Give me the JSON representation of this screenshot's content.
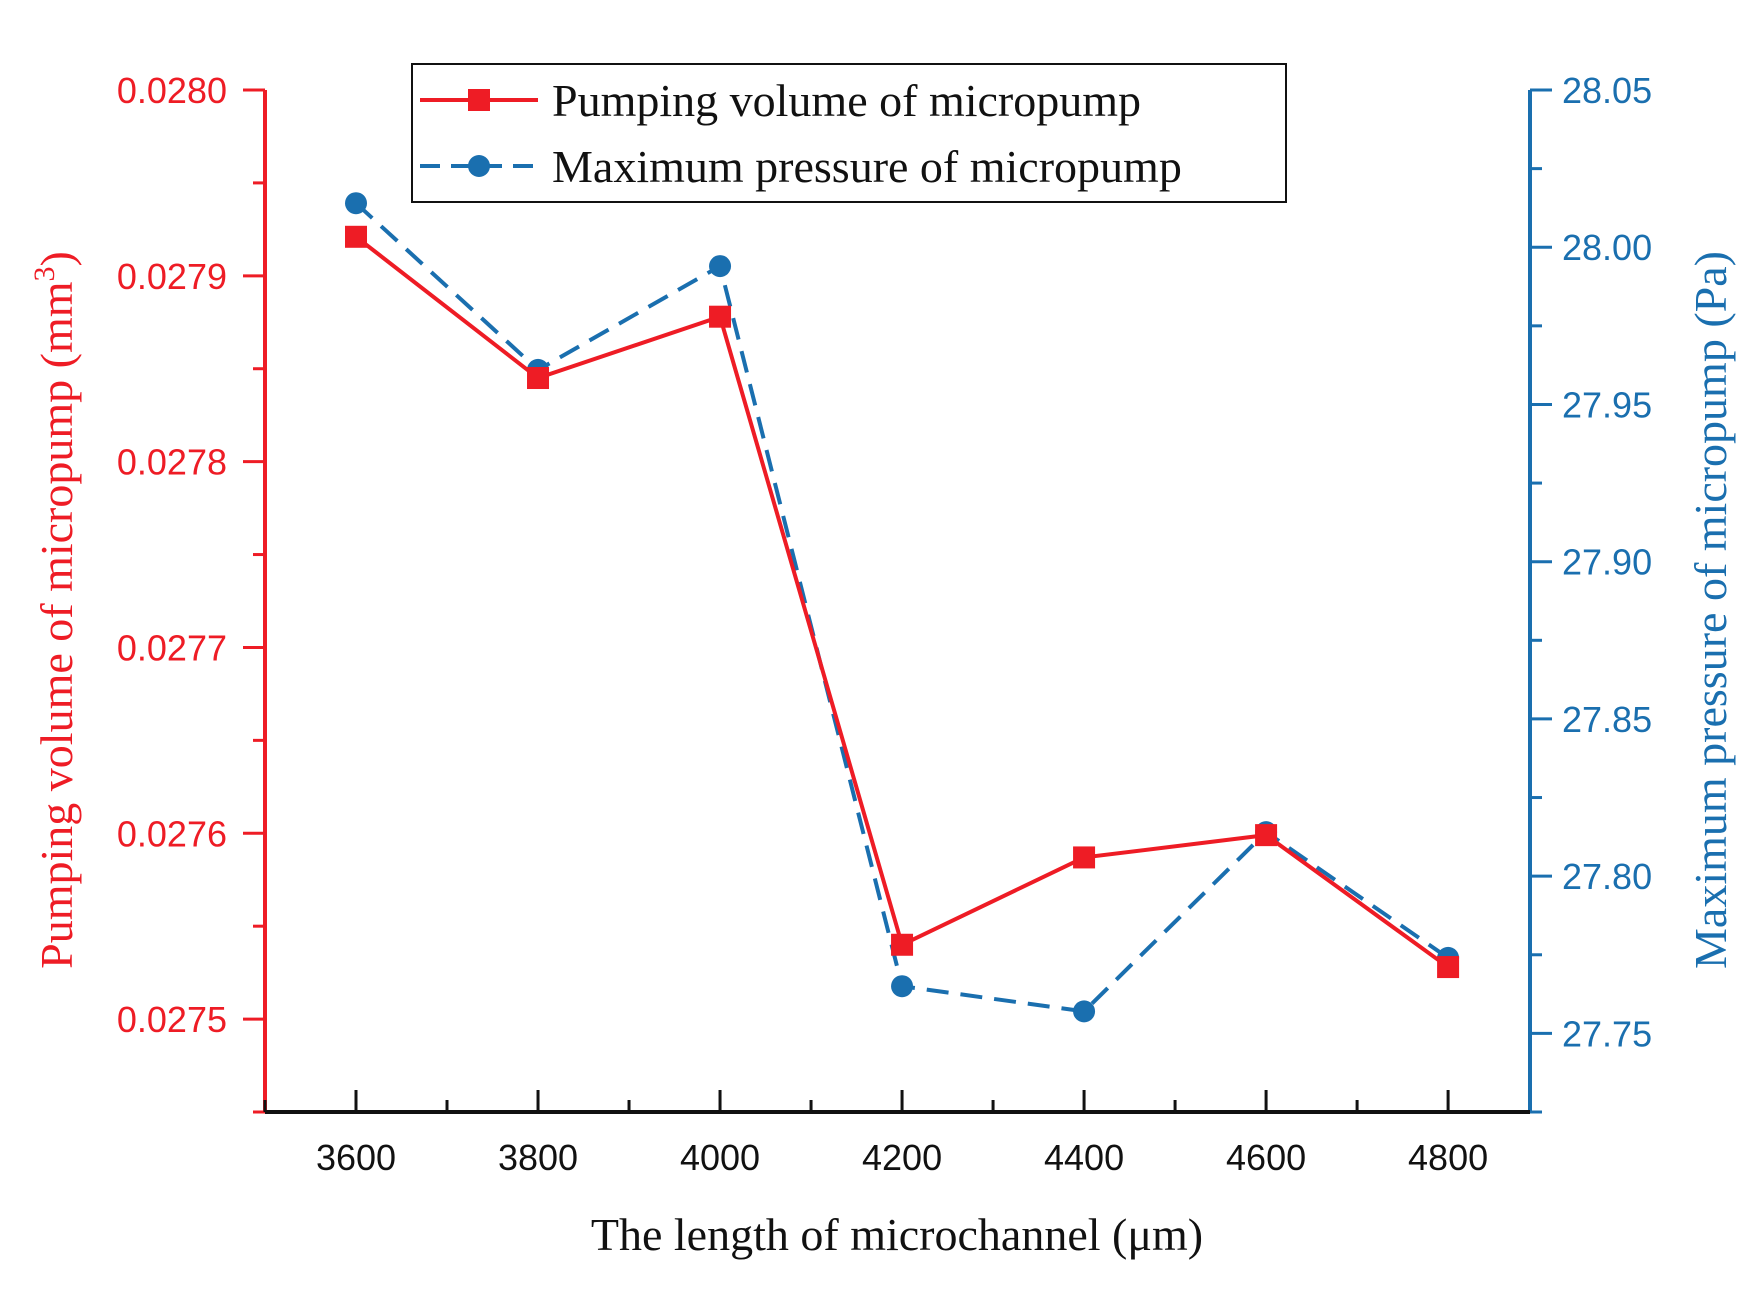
{
  "chart_data": {
    "type": "line",
    "title": "",
    "xlabel": "The length of microchannel (μm)",
    "ylabel_left": "Pumping volume of micropump (mm",
    "ylabel_left_superscript": "3",
    "ylabel_left_close": ")",
    "ylabel_right": "Maximum pressure of micropump (Pa)",
    "x": [
      3600,
      3800,
      4000,
      4200,
      4400,
      4600,
      4800
    ],
    "x_tick_labels": [
      "3600",
      "3800",
      "4000",
      "4200",
      "4400",
      "4600",
      "4800"
    ],
    "xlim": [
      3500,
      4890
    ],
    "ylim_left": [
      0.02745,
      0.028
    ],
    "ylim_right": [
      27.725,
      28.05
    ],
    "left_tick_labels": [
      "0.0275",
      "0.0276",
      "0.0277",
      "0.0278",
      "0.0279",
      "0.0280"
    ],
    "right_tick_labels": [
      "27.75",
      "27.80",
      "27.85",
      "27.90",
      "27.95",
      "28.00",
      "28.05"
    ],
    "legend_position": "top-center",
    "series": [
      {
        "name": "Pumping volume of micropump",
        "axis": "left",
        "color": "#ee1c25",
        "marker": "square",
        "line_style": "solid",
        "values": [
          0.027921,
          0.027845,
          0.027878,
          0.02754,
          0.027587,
          0.027599,
          0.027528
        ]
      },
      {
        "name": "Maximum pressure of micropump",
        "axis": "right",
        "color": "#1a6faf",
        "marker": "circle",
        "line_style": "dashed",
        "values": [
          28.014,
          27.961,
          27.994,
          27.765,
          27.757,
          27.814,
          27.774
        ]
      }
    ]
  }
}
